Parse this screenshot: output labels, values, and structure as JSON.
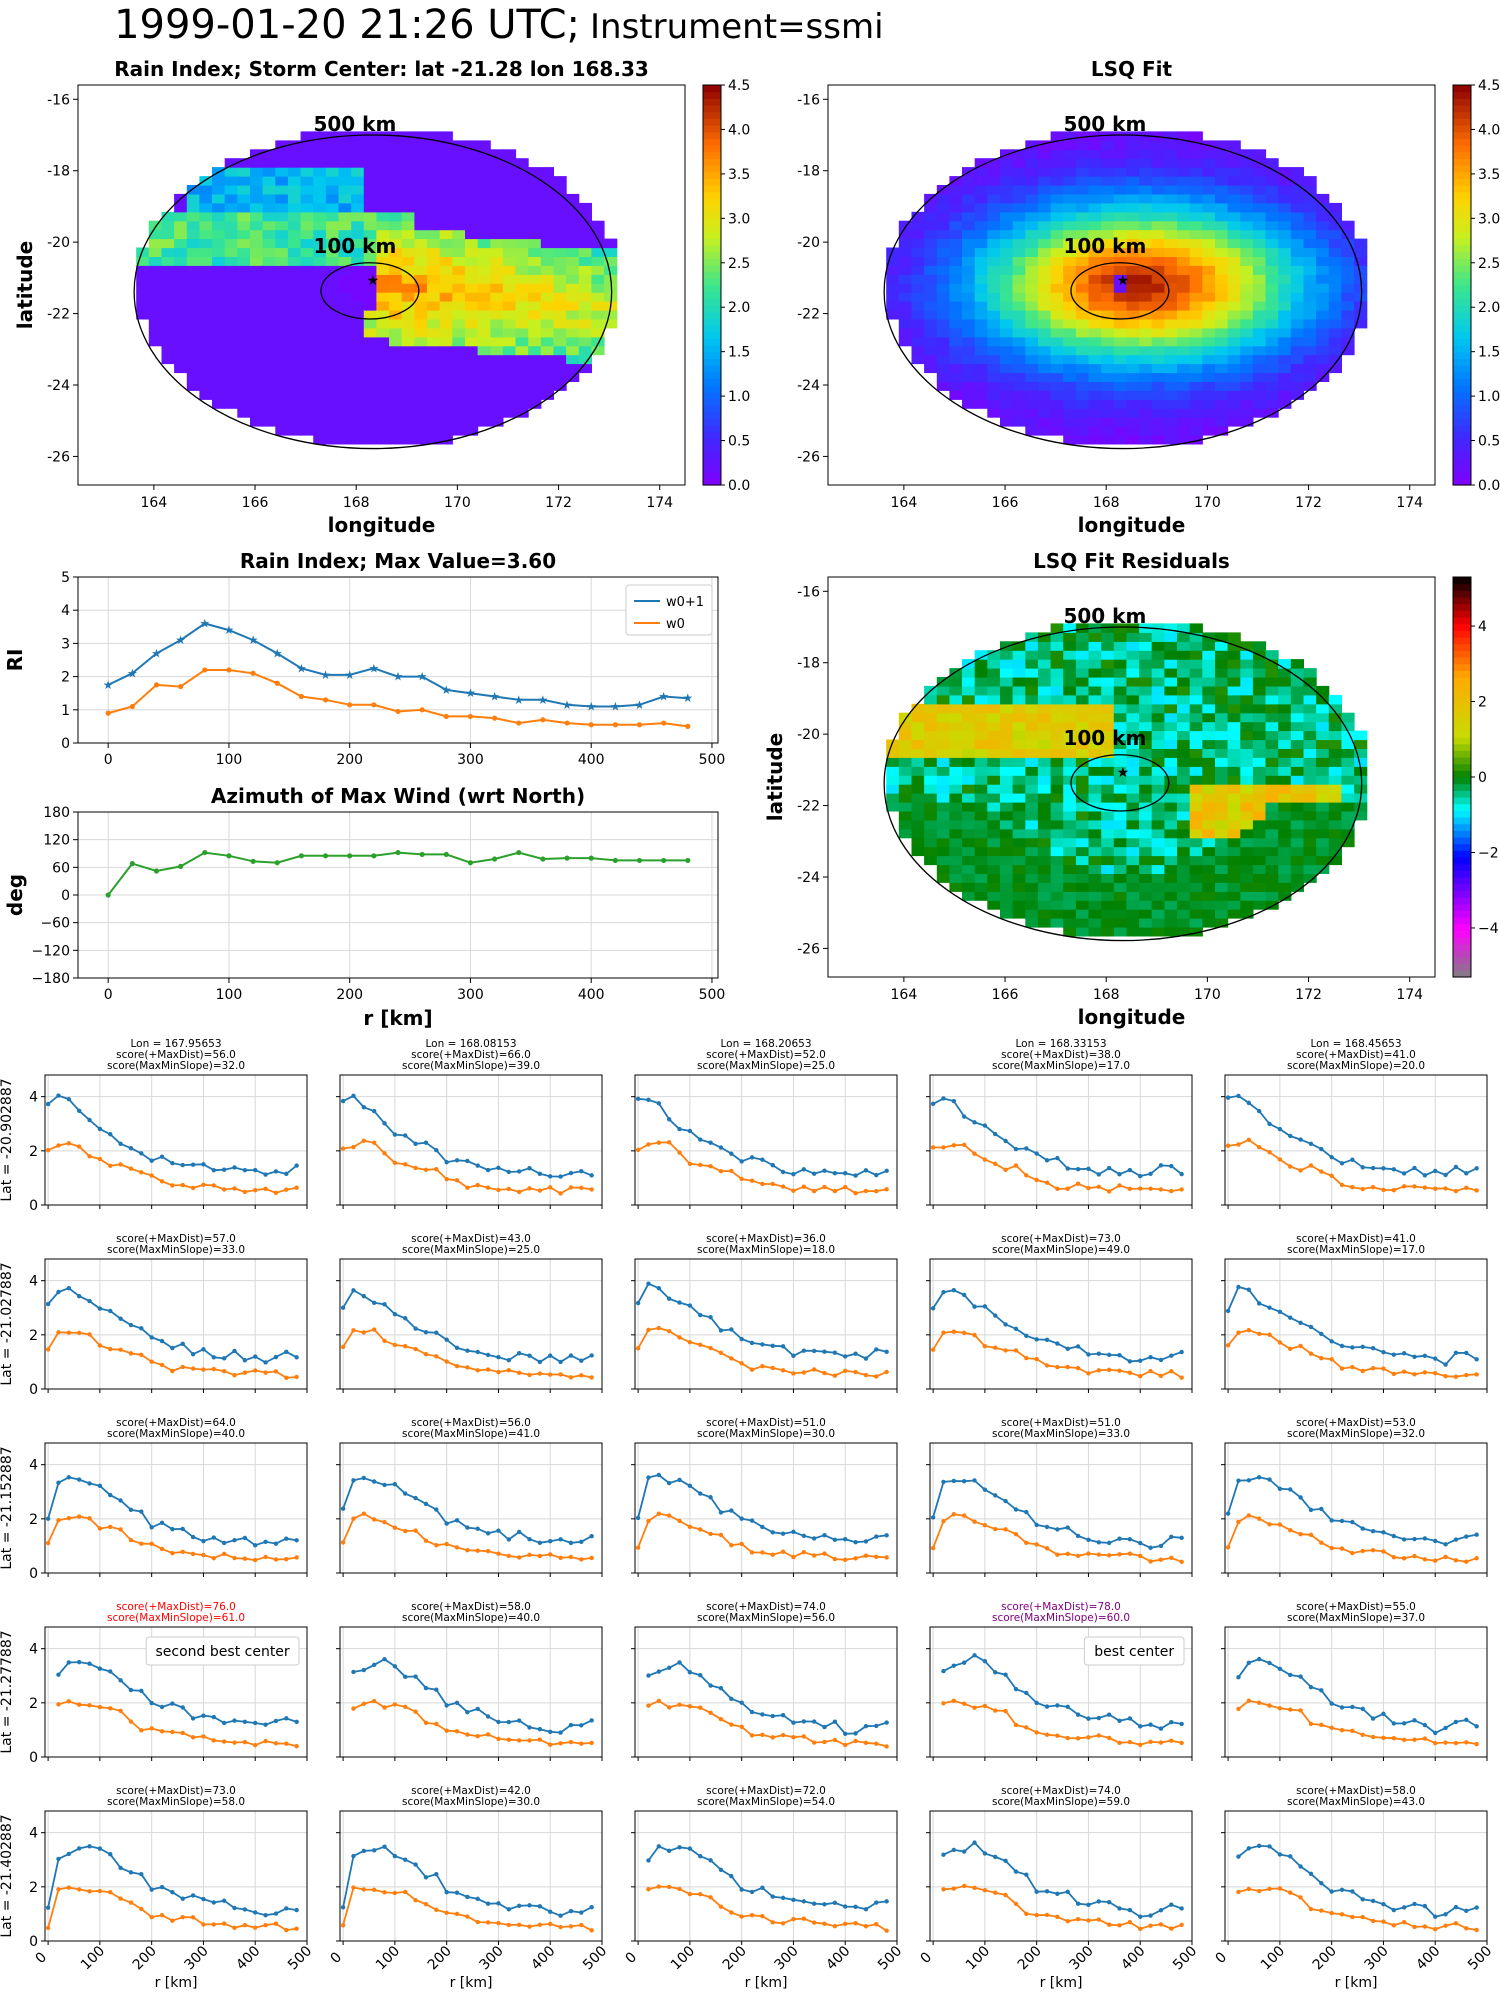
{
  "title_main": "1999-01-20 21:26 UTC;",
  "title_instr": "Instrument=ssmi",
  "colors": {
    "blue": "#1f77b4",
    "orange": "#ff7f0e",
    "green": "#2ca02c",
    "red": "#ff0000",
    "purple": "#800080"
  },
  "maps": {
    "rain": {
      "title": "Rain Index; Storm Center: lat -21.28 lon 168.33",
      "xlabel": "longitude",
      "ylabel": "latitude",
      "xticks": [
        "164",
        "166",
        "168",
        "170",
        "172",
        "174"
      ],
      "yticks": [
        "-16",
        "-18",
        "-20",
        "-22",
        "-24",
        "-26"
      ],
      "ring_outer": "500 km",
      "ring_inner": "100 km",
      "cbar_ticks": [
        "0.0",
        "0.5",
        "1.0",
        "1.5",
        "2.0",
        "2.5",
        "3.0",
        "3.5",
        "4.0",
        "4.5"
      ]
    },
    "fit": {
      "title": "LSQ Fit",
      "xlabel": "longitude",
      "ylabel": "",
      "xticks": [
        "164",
        "166",
        "168",
        "170",
        "172",
        "174"
      ],
      "yticks": [
        "-16",
        "-18",
        "-20",
        "-22",
        "-24",
        "-26"
      ],
      "ring_outer": "500 km",
      "ring_inner": "100 km",
      "cbar_ticks": [
        "0.0",
        "0.5",
        "1.0",
        "1.5",
        "2.0",
        "2.5",
        "3.0",
        "3.5",
        "4.0",
        "4.5"
      ]
    },
    "resid": {
      "title": "LSQ Fit Residuals",
      "xlabel": "longitude",
      "ylabel": "latitude",
      "xticks": [
        "164",
        "166",
        "168",
        "170",
        "172",
        "174"
      ],
      "yticks": [
        "-16",
        "-18",
        "-20",
        "-22",
        "-24",
        "-26"
      ],
      "ring_outer": "500 km",
      "ring_inner": "100 km",
      "cbar_ticks": [
        "4",
        "2",
        "0",
        "−2",
        "−4"
      ]
    }
  },
  "chart_data": [
    {
      "type": "line",
      "title": "Rain Index; Max Value=3.60",
      "xlabel": "",
      "ylabel": "RI",
      "xlim": [
        -25,
        505
      ],
      "ylim": [
        0,
        5
      ],
      "xticks": [
        "0",
        "100",
        "200",
        "300",
        "400",
        "500"
      ],
      "yticks": [
        "0",
        "1",
        "2",
        "3",
        "4",
        "5"
      ],
      "grid": true,
      "legend": "top-right",
      "x": [
        0,
        20,
        40,
        60,
        80,
        100,
        120,
        140,
        160,
        180,
        200,
        220,
        240,
        260,
        280,
        300,
        320,
        340,
        360,
        380,
        400,
        420,
        440,
        460,
        480
      ],
      "series": [
        {
          "name": "w0+1",
          "values": [
            1.75,
            2.1,
            2.7,
            3.1,
            3.6,
            3.4,
            3.1,
            2.7,
            2.25,
            2.05,
            2.05,
            2.25,
            2.0,
            2.0,
            1.6,
            1.5,
            1.4,
            1.3,
            1.3,
            1.15,
            1.1,
            1.1,
            1.15,
            1.4,
            1.35
          ]
        },
        {
          "name": "w0",
          "values": [
            0.9,
            1.1,
            1.75,
            1.7,
            2.2,
            2.2,
            2.1,
            1.8,
            1.4,
            1.3,
            1.15,
            1.15,
            0.95,
            1.0,
            0.8,
            0.8,
            0.75,
            0.6,
            0.7,
            0.6,
            0.55,
            0.55,
            0.55,
            0.6,
            0.5
          ]
        }
      ]
    },
    {
      "type": "line",
      "title": "Azimuth of Max Wind (wrt North)",
      "xlabel": "r [km]",
      "ylabel": "deg",
      "xlim": [
        -25,
        505
      ],
      "ylim": [
        -180,
        180
      ],
      "xticks": [
        "0",
        "100",
        "200",
        "300",
        "400",
        "500"
      ],
      "yticks": [
        "180",
        "120",
        "60",
        "0",
        "−60",
        "−120",
        "−180"
      ],
      "grid": true,
      "x": [
        0,
        20,
        40,
        60,
        80,
        100,
        120,
        140,
        160,
        180,
        200,
        220,
        240,
        260,
        280,
        300,
        320,
        340,
        360,
        380,
        400,
        420,
        440,
        460,
        480
      ],
      "series": [
        {
          "values": [
            0,
            68,
            52,
            62,
            92,
            85,
            73,
            70,
            85,
            85,
            85,
            85,
            92,
            88,
            88,
            70,
            78,
            92,
            78,
            80,
            80,
            75,
            75,
            75,
            75
          ]
        }
      ]
    }
  ],
  "grid_panels": {
    "rows": [
      "Lat = -20.902887",
      "Lat = -21.027887",
      "Lat = -21.152887",
      "Lat = -21.277887",
      "Lat = -21.402887"
    ],
    "cols": [
      "Lon = 167.95653",
      "Lon = 168.08153",
      "Lon = 168.20653",
      "Lon = 168.33153",
      "Lon = 168.45653"
    ],
    "xlabel": "r [km]",
    "xticks": [
      "0",
      "100",
      "200",
      "300",
      "400",
      "500"
    ],
    "yticks": [
      "0",
      "2",
      "4"
    ],
    "scores": [
      [
        [
          "score(+MaxDist)=56.0",
          "score(MaxMinSlope)=32.0"
        ],
        [
          "score(+MaxDist)=66.0",
          "score(MaxMinSlope)=39.0"
        ],
        [
          "score(+MaxDist)=52.0",
          "score(MaxMinSlope)=25.0"
        ],
        [
          "score(+MaxDist)=38.0",
          "score(MaxMinSlope)=17.0"
        ],
        [
          "score(+MaxDist)=41.0",
          "score(MaxMinSlope)=20.0"
        ]
      ],
      [
        [
          "score(+MaxDist)=57.0",
          "score(MaxMinSlope)=33.0"
        ],
        [
          "score(+MaxDist)=43.0",
          "score(MaxMinSlope)=25.0"
        ],
        [
          "score(+MaxDist)=36.0",
          "score(MaxMinSlope)=18.0"
        ],
        [
          "score(+MaxDist)=73.0",
          "score(MaxMinSlope)=49.0"
        ],
        [
          "score(+MaxDist)=41.0",
          "score(MaxMinSlope)=17.0"
        ]
      ],
      [
        [
          "score(+MaxDist)=64.0",
          "score(MaxMinSlope)=40.0"
        ],
        [
          "score(+MaxDist)=56.0",
          "score(MaxMinSlope)=41.0"
        ],
        [
          "score(+MaxDist)=51.0",
          "score(MaxMinSlope)=30.0"
        ],
        [
          "score(+MaxDist)=51.0",
          "score(MaxMinSlope)=33.0"
        ],
        [
          "score(+MaxDist)=53.0",
          "score(MaxMinSlope)=32.0"
        ]
      ],
      [
        [
          "score(+MaxDist)=76.0",
          "score(MaxMinSlope)=61.0"
        ],
        [
          "score(+MaxDist)=58.0",
          "score(MaxMinSlope)=40.0"
        ],
        [
          "score(+MaxDist)=74.0",
          "score(MaxMinSlope)=56.0"
        ],
        [
          "score(+MaxDist)=78.0",
          "score(MaxMinSlope)=60.0"
        ],
        [
          "score(+MaxDist)=55.0",
          "score(MaxMinSlope)=37.0"
        ]
      ],
      [
        [
          "score(+MaxDist)=73.0",
          "score(MaxMinSlope)=58.0"
        ],
        [
          "score(+MaxDist)=42.0",
          "score(MaxMinSlope)=30.0"
        ],
        [
          "score(+MaxDist)=72.0",
          "score(MaxMinSlope)=54.0"
        ],
        [
          "score(+MaxDist)=74.0",
          "score(MaxMinSlope)=59.0"
        ],
        [
          "score(+MaxDist)=58.0",
          "score(MaxMinSlope)=43.0"
        ]
      ]
    ],
    "score_colors": [
      [
        null,
        null,
        null,
        null,
        null
      ],
      [
        null,
        null,
        null,
        null,
        null
      ],
      [
        null,
        null,
        null,
        null,
        null
      ],
      [
        "red",
        null,
        null,
        "purple",
        null
      ],
      [
        null,
        null,
        null,
        null,
        null
      ]
    ],
    "annotations": {
      "3-0": "second best center",
      "3-3": "best center"
    },
    "base_blue": [
      3.9,
      4.1,
      3.8,
      3.4,
      3.0,
      2.8,
      2.6,
      2.3,
      2.2,
      2.0,
      1.8,
      1.7,
      1.6,
      1.5,
      1.4,
      1.35,
      1.3,
      1.3,
      1.3,
      1.2,
      1.2,
      1.2,
      1.3,
      1.3,
      1.3
    ],
    "base_orange": [
      2.1,
      2.2,
      2.3,
      2.2,
      1.9,
      1.6,
      1.5,
      1.4,
      1.35,
      1.2,
      1.0,
      0.8,
      0.7,
      0.7,
      0.7,
      0.65,
      0.6,
      0.6,
      0.6,
      0.6,
      0.6,
      0.55,
      0.55,
      0.55,
      0.55
    ],
    "peak_blue": [
      1.4,
      3.1,
      3.4,
      3.5,
      3.6,
      3.4,
      3.1,
      2.9,
      2.5,
      2.4,
      2.0,
      1.9,
      1.8,
      1.7,
      1.6,
      1.5,
      1.4,
      1.4,
      1.3,
      1.25,
      1.1,
      1.1,
      1.2,
      1.3,
      1.35
    ],
    "peak_orange": [
      0.5,
      1.9,
      2.0,
      1.95,
      1.9,
      1.85,
      1.75,
      1.6,
      1.3,
      1.1,
      1.0,
      0.9,
      0.85,
      0.8,
      0.75,
      0.7,
      0.7,
      0.65,
      0.6,
      0.6,
      0.55,
      0.55,
      0.55,
      0.5,
      0.5
    ]
  }
}
